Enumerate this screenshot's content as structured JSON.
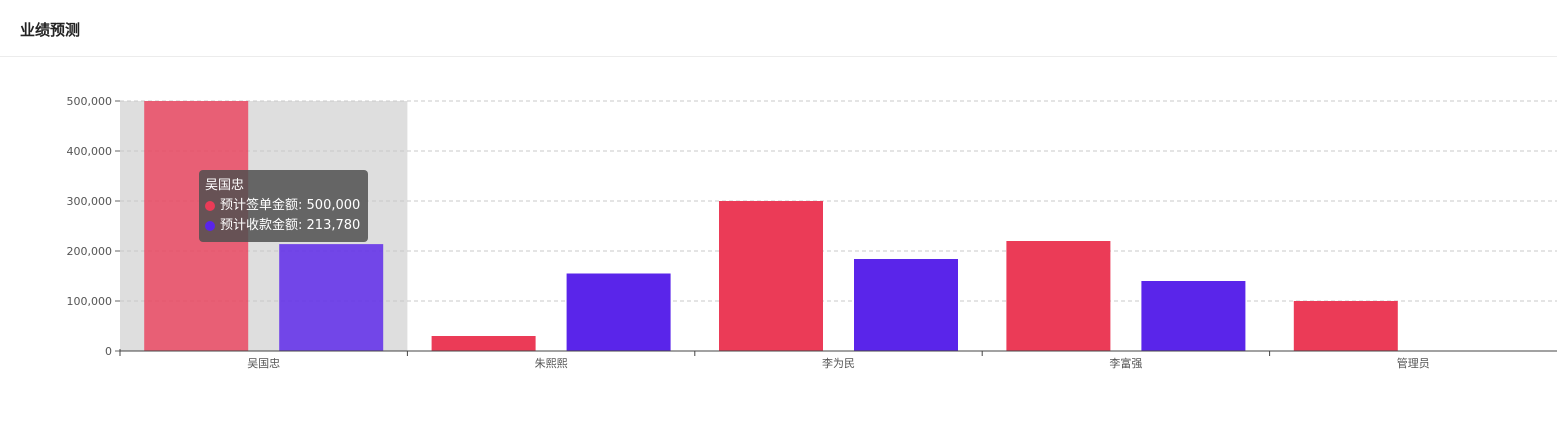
{
  "header": {
    "title": "业绩预测"
  },
  "colors": {
    "series1": "#eb3b57",
    "series2": "#5a25ea"
  },
  "tooltip": {
    "category": "吴国忠",
    "items": [
      {
        "name": "预计签单金额",
        "value": "500,000"
      },
      {
        "name": "预计收款金额",
        "value": "213,780"
      }
    ]
  },
  "chart_data": {
    "type": "bar",
    "categories": [
      "吴国忠",
      "朱熙熙",
      "李为民",
      "李富强",
      "管理员"
    ],
    "series": [
      {
        "name": "预计签单金额",
        "values": [
          500000,
          30000,
          300000,
          220000,
          100000
        ]
      },
      {
        "name": "预计收款金额",
        "values": [
          213780,
          155000,
          184000,
          140000,
          0
        ]
      }
    ],
    "yticks": [
      "0",
      "100,000",
      "200,000",
      "300,000",
      "400,000",
      "500,000"
    ],
    "ylim": [
      0,
      500000
    ],
    "grid": true,
    "highlighted_category": "吴国忠"
  }
}
